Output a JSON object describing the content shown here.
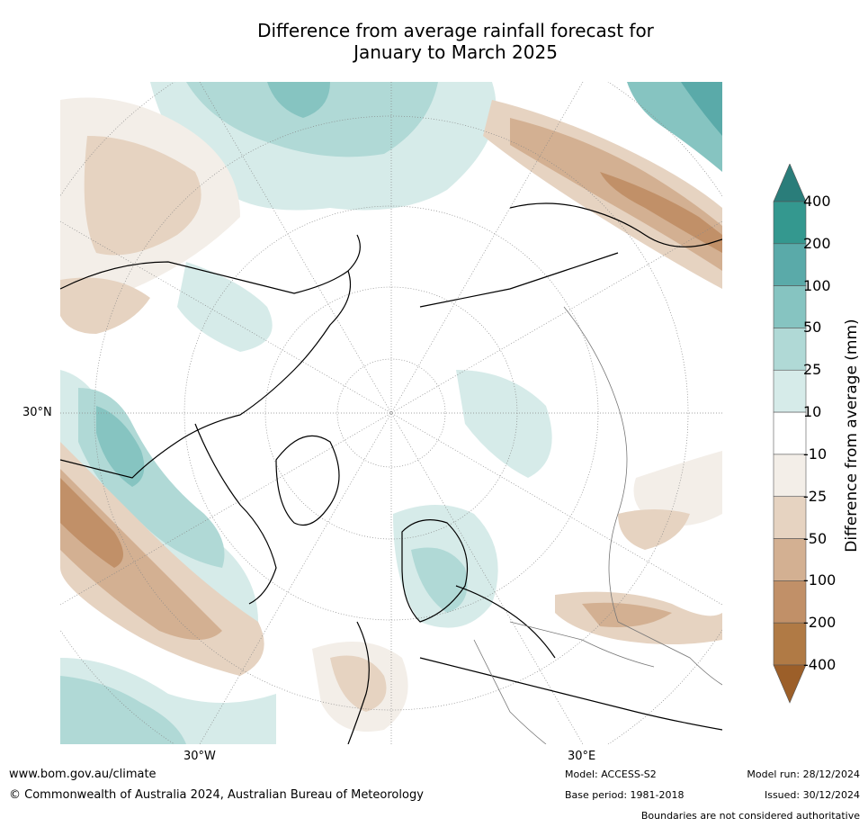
{
  "title_line1": "Difference from average rainfall forecast for",
  "title_line2": "January to March 2025",
  "axis_labels": {
    "lat_left": "30°N",
    "lon_bottom_left": "30°W",
    "lon_bottom_right": "30°E"
  },
  "legend": {
    "title": "Difference from average (mm)",
    "ticks": [
      "400",
      "200",
      "100",
      "50",
      "25",
      "10",
      "-10",
      "-25",
      "-50",
      "-100",
      "-200",
      "-400"
    ],
    "colors": [
      "#2a7d7a",
      "#34988f",
      "#5aaaa9",
      "#86c4c1",
      "#b0d9d6",
      "#d6ebe9",
      "#ffffff",
      "#f3eee8",
      "#e6d3c1",
      "#d3b092",
      "#c19068",
      "#b07a45",
      "#9c5f29"
    ]
  },
  "footer": {
    "website": "www.bom.gov.au/climate",
    "copyright": "© Commonwealth of Australia 2024, Australian Bureau of Meteorology",
    "model": "Model: ACCESS-S2",
    "base_period": "Base period: 1981-2018",
    "model_run": "Model run: 28/12/2024",
    "issued": "Issued: 30/12/2024",
    "disclaimer": "Boundaries are not considered authoritative"
  }
}
